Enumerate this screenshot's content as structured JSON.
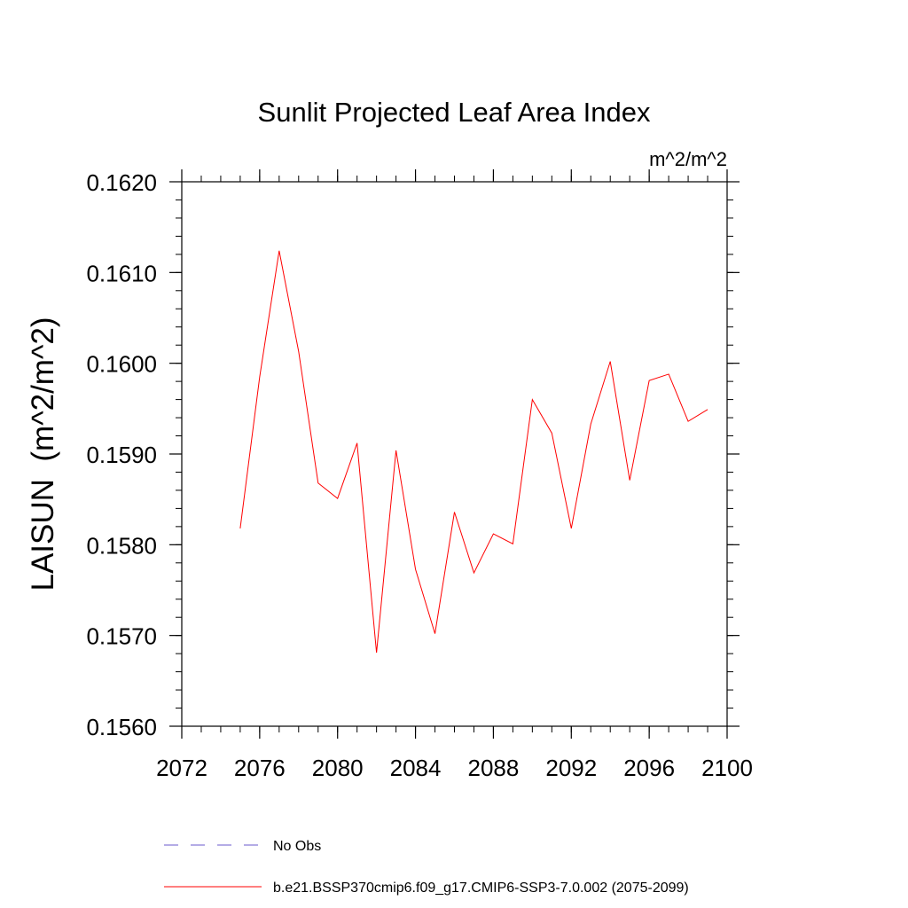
{
  "chart_data": {
    "type": "line",
    "title": "Sunlit Projected Leaf Area Index",
    "units": "m^2/m^2",
    "ylabel": "LAISUN  (m^2/m^2)",
    "xlabel": "",
    "xlim": [
      2072,
      2100
    ],
    "ylim": [
      0.156,
      0.162
    ],
    "x_ticks": [
      2072,
      2076,
      2080,
      2084,
      2088,
      2092,
      2096,
      2100
    ],
    "x_tick_labels": [
      "2072",
      "2076",
      "2080",
      "2084",
      "2088",
      "2092",
      "2096",
      "2100"
    ],
    "y_ticks": [
      0.156,
      0.157,
      0.158,
      0.159,
      0.16,
      0.161,
      0.162
    ],
    "y_tick_labels": [
      "0.1560",
      "0.1570",
      "0.1580",
      "0.1590",
      "0.1600",
      "0.1610",
      "0.1620"
    ],
    "grid": false,
    "series": [
      {
        "name": "b.e21.BSSP370cmip6.f09_g17.CMIP6-SSP3-7.0.002 (2075-2099)",
        "color": "#ff0000",
        "style": "solid",
        "x": [
          2075,
          2076,
          2077,
          2078,
          2079,
          2080,
          2081,
          2082,
          2083,
          2084,
          2085,
          2086,
          2087,
          2088,
          2089,
          2090,
          2091,
          2092,
          2093,
          2094,
          2095,
          2096,
          2097,
          2098,
          2099
        ],
        "values": [
          0.15818,
          0.15985,
          0.16124,
          0.16013,
          0.15868,
          0.15851,
          0.15912,
          0.15681,
          0.15904,
          0.15773,
          0.15702,
          0.15836,
          0.15769,
          0.15812,
          0.15801,
          0.1596,
          0.15923,
          0.15818,
          0.15933,
          0.16002,
          0.15871,
          0.15981,
          0.15988,
          0.15936,
          0.15949
        ]
      }
    ],
    "legend": {
      "placement": "bottom-left",
      "entries": [
        {
          "label": "No Obs",
          "color": "#6a5acd",
          "style": "dashed"
        },
        {
          "label": "b.e21.BSSP370cmip6.f09_g17.CMIP6-SSP3-7.0.002 (2075-2099)",
          "color": "#ff0000",
          "style": "solid"
        }
      ]
    }
  }
}
